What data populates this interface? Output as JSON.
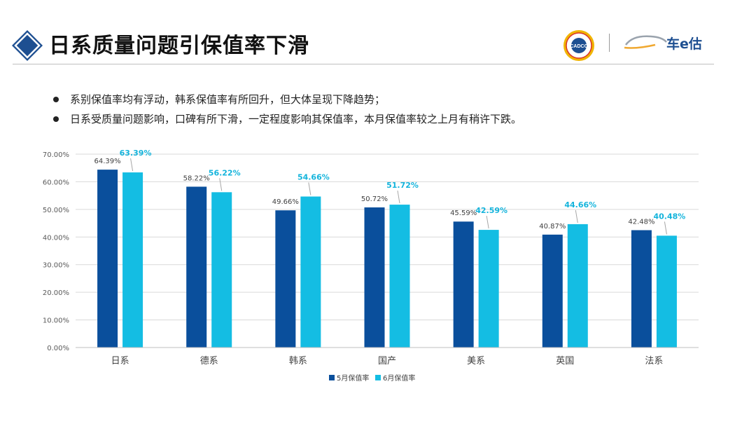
{
  "header": {
    "title": "日系质量问题引保值率下滑",
    "title_icon": "diamond-icon",
    "seal_logo_text": "CADCC",
    "brand_logo_text": "车e估"
  },
  "bullets": [
    "系别保值率均有浮动，韩系保值率有所回升，但大体呈现下降趋势；",
    "日系受质量问题影响，口碑有所下滑，一定程度影响其保值率，本月保值率较之上月有稍许下跌。"
  ],
  "colors": {
    "may": "#0a4f9c",
    "june": "#14bde3",
    "june_label": "#14b4dc",
    "title_icon": "#1d4f91"
  },
  "chart_data": {
    "type": "bar",
    "categories": [
      "日系",
      "德系",
      "韩系",
      "国产",
      "美系",
      "英国",
      "法系"
    ],
    "series": [
      {
        "name": "5月保值率",
        "values": [
          64.39,
          58.22,
          49.66,
          50.72,
          45.59,
          40.87,
          42.48
        ],
        "labels": [
          "64.39%",
          "58.22%",
          "49.66%",
          "50.72%",
          "45.59%",
          "40.87%",
          "42.48%"
        ]
      },
      {
        "name": "6月保值率",
        "values": [
          63.39,
          56.22,
          54.66,
          51.72,
          42.59,
          44.66,
          40.48
        ],
        "labels": [
          "63.39%",
          "56.22%",
          "54.66%",
          "51.72%",
          "42.59%",
          "44.66%",
          "40.48%"
        ]
      }
    ],
    "ylim": [
      0,
      70
    ],
    "yticks": [
      0,
      10,
      20,
      30,
      40,
      50,
      60,
      70
    ],
    "ytick_labels": [
      "0.00%",
      "10.00%",
      "20.00%",
      "30.00%",
      "40.00%",
      "50.00%",
      "60.00%",
      "70.00%"
    ],
    "grid": true,
    "legend_position": "bottom"
  }
}
